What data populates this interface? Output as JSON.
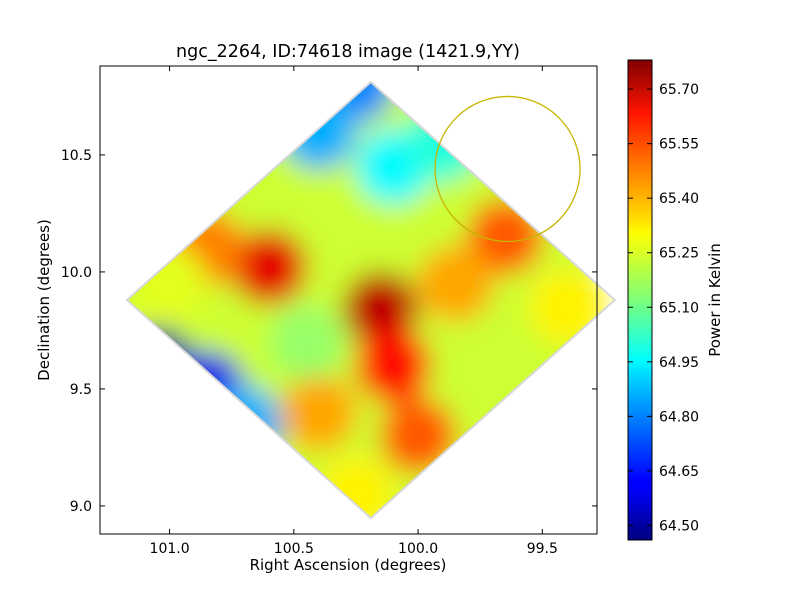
{
  "chart_data": {
    "type": "heatmap",
    "title": "ngc_2264, ID:74618 image (1421.9,YY)",
    "xlabel": "Right Ascension (degrees)",
    "ylabel": "Declination (degrees)",
    "xlim": [
      101.28,
      99.28
    ],
    "ylim": [
      8.88,
      10.88
    ],
    "x_ticks": [
      101.0,
      100.5,
      100.0,
      99.5
    ],
    "x_tick_labels": [
      "101.0",
      "100.5",
      "100.0",
      "99.5"
    ],
    "y_ticks": [
      9.0,
      9.5,
      10.0,
      10.5
    ],
    "y_tick_labels": [
      "9.0",
      "9.5",
      "10.0",
      "10.5"
    ],
    "colormap": "jet",
    "colorbar": {
      "label": "Power in Kelvin",
      "min": 64.46,
      "max": 65.78,
      "ticks": [
        64.5,
        64.65,
        64.8,
        64.95,
        65.1,
        65.25,
        65.4,
        65.55,
        65.7
      ],
      "tick_labels": [
        "64.50",
        "64.65",
        "64.80",
        "64.95",
        "65.10",
        "65.25",
        "65.40",
        "65.55",
        "65.70"
      ]
    },
    "map_center": {
      "ra": 100.19,
      "dec": 9.88
    },
    "features": [
      {
        "ra": 100.15,
        "dec": 9.84,
        "value": 65.7
      },
      {
        "ra": 100.6,
        "dec": 10.02,
        "value": 65.65
      },
      {
        "ra": 100.85,
        "dec": 10.1,
        "value": 65.45
      },
      {
        "ra": 101.0,
        "dec": 9.95,
        "value": 65.25
      },
      {
        "ra": 101.05,
        "dec": 9.6,
        "value": 64.5
      },
      {
        "ra": 100.85,
        "dec": 9.5,
        "value": 64.6
      },
      {
        "ra": 100.7,
        "dec": 9.35,
        "value": 64.85
      },
      {
        "ra": 100.25,
        "dec": 10.8,
        "value": 64.8
      },
      {
        "ra": 100.4,
        "dec": 10.6,
        "value": 64.85
      },
      {
        "ra": 100.1,
        "dec": 10.45,
        "value": 64.95
      },
      {
        "ra": 99.9,
        "dec": 10.55,
        "value": 65.0
      },
      {
        "ra": 99.65,
        "dec": 10.15,
        "value": 65.5
      },
      {
        "ra": 99.85,
        "dec": 9.95,
        "value": 65.4
      },
      {
        "ra": 99.4,
        "dec": 9.85,
        "value": 65.3
      },
      {
        "ra": 100.1,
        "dec": 9.6,
        "value": 65.6
      },
      {
        "ra": 100.0,
        "dec": 9.3,
        "value": 65.5
      },
      {
        "ra": 100.25,
        "dec": 9.05,
        "value": 65.3
      },
      {
        "ra": 100.4,
        "dec": 9.4,
        "value": 65.4
      },
      {
        "ra": 100.45,
        "dec": 9.7,
        "value": 65.15
      }
    ],
    "annotations": [
      {
        "type": "circle",
        "ra": 99.64,
        "dec": 10.44,
        "radius_deg": 0.31,
        "color": "#c8b400"
      }
    ],
    "grid": false
  }
}
